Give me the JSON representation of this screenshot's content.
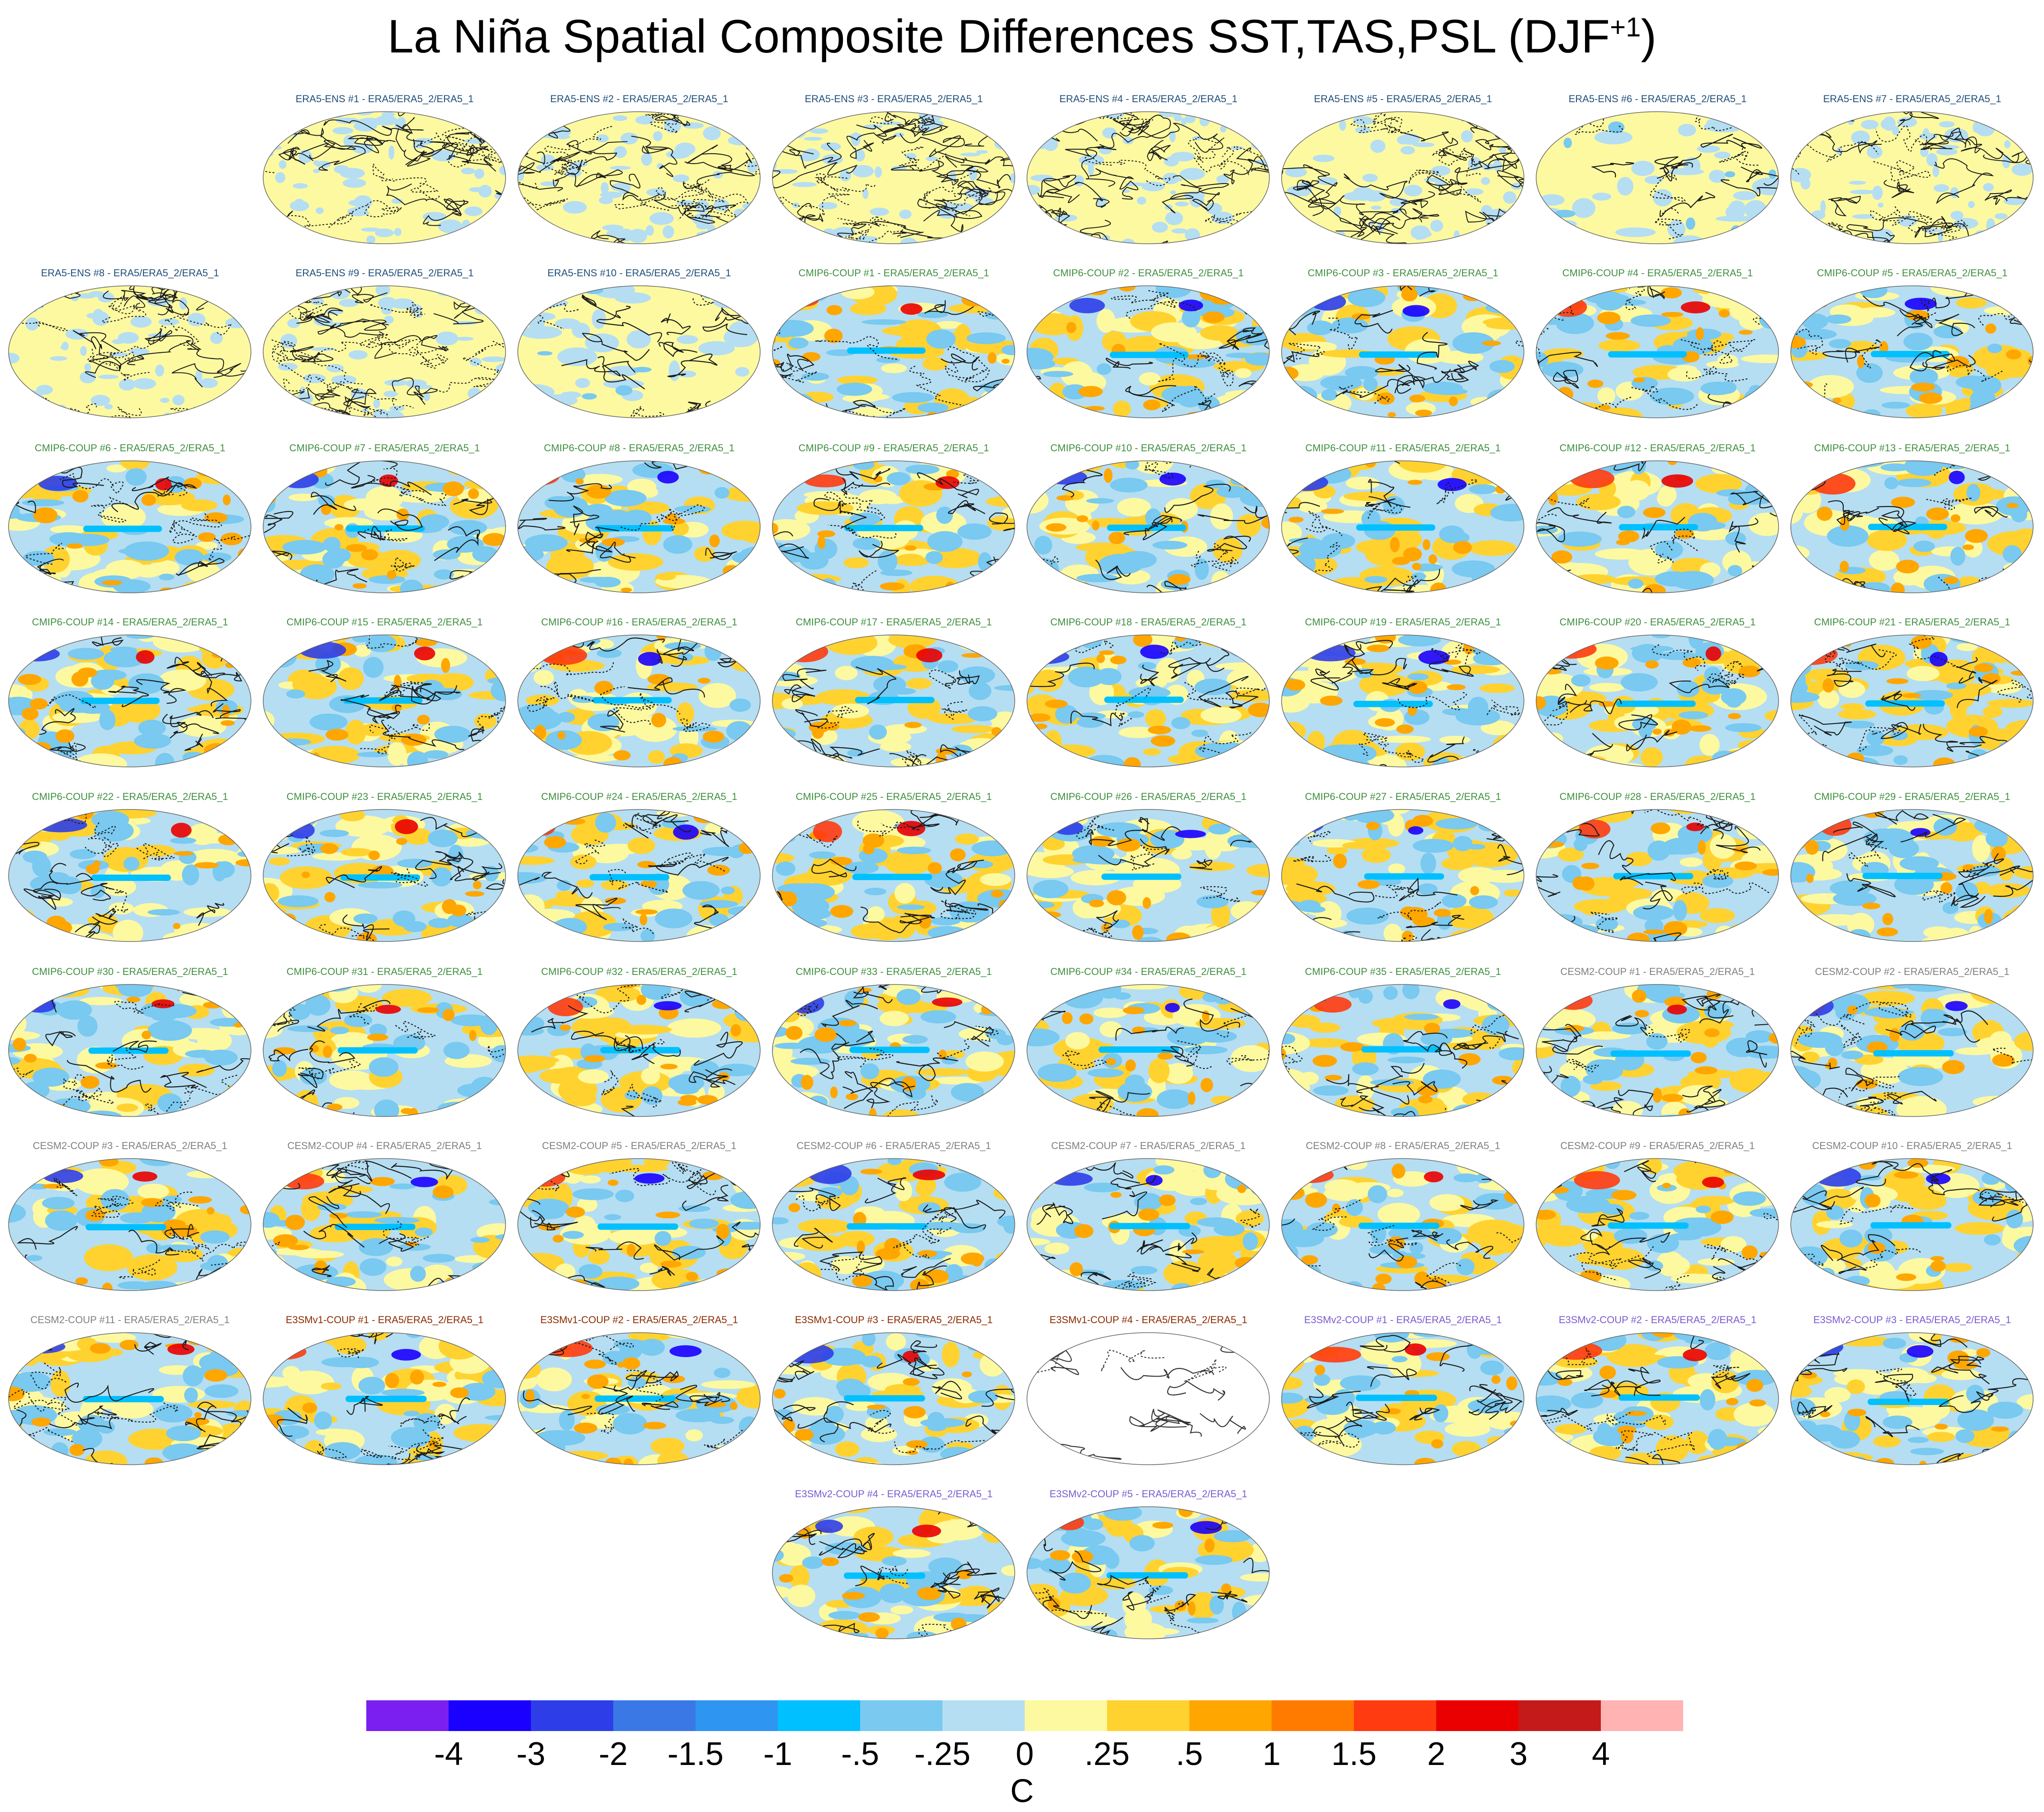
{
  "title": {
    "text": "La Niña Spatial Composite Differences SST,TAS,PSL (DJF",
    "sup": "+1",
    "close": ")"
  },
  "colors": {
    "ERA5-ENS": "#1f4e79",
    "CMIP6-COUP": "#3f8f3f",
    "CESM2-COUP": "#808080",
    "E3SMv1-COUP": "#8b2a00",
    "E3SMv2-COUP": "#7a5cd0"
  },
  "panels": [
    {
      "label": "ERA5-ENS    #1 - ERA5/ERA5_2/ERA5_1",
      "group": "ERA5-ENS",
      "style": "noise"
    },
    {
      "label": "ERA5-ENS    #2 - ERA5/ERA5_2/ERA5_1",
      "group": "ERA5-ENS",
      "style": "noise"
    },
    {
      "label": "ERA5-ENS    #3 - ERA5/ERA5_2/ERA5_1",
      "group": "ERA5-ENS",
      "style": "noise"
    },
    {
      "label": "ERA5-ENS    #4 - ERA5/ERA5_2/ERA5_1",
      "group": "ERA5-ENS",
      "style": "noise"
    },
    {
      "label": "ERA5-ENS    #5 - ERA5/ERA5_2/ERA5_1",
      "group": "ERA5-ENS",
      "style": "noise"
    },
    {
      "label": "ERA5-ENS    #6 - ERA5/ERA5_2/ERA5_1",
      "group": "ERA5-ENS",
      "style": "light"
    },
    {
      "label": "ERA5-ENS    #7 - ERA5/ERA5_2/ERA5_1",
      "group": "ERA5-ENS",
      "style": "noise"
    },
    {
      "label": "ERA5-ENS    #8 - ERA5/ERA5_2/ERA5_1",
      "group": "ERA5-ENS",
      "style": "noise"
    },
    {
      "label": "ERA5-ENS    #9 - ERA5/ERA5_2/ERA5_1",
      "group": "ERA5-ENS",
      "style": "noise"
    },
    {
      "label": "ERA5-ENS    #10 - ERA5/ERA5_2/ERA5_1",
      "group": "ERA5-ENS",
      "style": "light"
    },
    {
      "label": "CMIP6-COUP  #1 - ERA5/ERA5_2/ERA5_1",
      "group": "CMIP6-COUP",
      "style": "model"
    },
    {
      "label": "CMIP6-COUP  #2 - ERA5/ERA5_2/ERA5_1",
      "group": "CMIP6-COUP",
      "style": "model"
    },
    {
      "label": "CMIP6-COUP  #3 - ERA5/ERA5_2/ERA5_1",
      "group": "CMIP6-COUP",
      "style": "model"
    },
    {
      "label": "CMIP6-COUP  #4 - ERA5/ERA5_2/ERA5_1",
      "group": "CMIP6-COUP",
      "style": "model"
    },
    {
      "label": "CMIP6-COUP  #5 - ERA5/ERA5_2/ERA5_1",
      "group": "CMIP6-COUP",
      "style": "model"
    },
    {
      "label": "CMIP6-COUP  #6 - ERA5/ERA5_2/ERA5_1",
      "group": "CMIP6-COUP",
      "style": "model"
    },
    {
      "label": "CMIP6-COUP  #7 - ERA5/ERA5_2/ERA5_1",
      "group": "CMIP6-COUP",
      "style": "model"
    },
    {
      "label": "CMIP6-COUP  #8 - ERA5/ERA5_2/ERA5_1",
      "group": "CMIP6-COUP",
      "style": "model"
    },
    {
      "label": "CMIP6-COUP  #9 - ERA5/ERA5_2/ERA5_1",
      "group": "CMIP6-COUP",
      "style": "model"
    },
    {
      "label": "CMIP6-COUP  #10 - ERA5/ERA5_2/ERA5_1",
      "group": "CMIP6-COUP",
      "style": "model"
    },
    {
      "label": "CMIP6-COUP  #11 - ERA5/ERA5_2/ERA5_1",
      "group": "CMIP6-COUP",
      "style": "model"
    },
    {
      "label": "CMIP6-COUP  #12 - ERA5/ERA5_2/ERA5_1",
      "group": "CMIP6-COUP",
      "style": "model"
    },
    {
      "label": "CMIP6-COUP  #13 - ERA5/ERA5_2/ERA5_1",
      "group": "CMIP6-COUP",
      "style": "model"
    },
    {
      "label": "CMIP6-COUP  #14 - ERA5/ERA5_2/ERA5_1",
      "group": "CMIP6-COUP",
      "style": "model"
    },
    {
      "label": "CMIP6-COUP  #15 - ERA5/ERA5_2/ERA5_1",
      "group": "CMIP6-COUP",
      "style": "model"
    },
    {
      "label": "CMIP6-COUP  #16 - ERA5/ERA5_2/ERA5_1",
      "group": "CMIP6-COUP",
      "style": "model"
    },
    {
      "label": "CMIP6-COUP  #17 - ERA5/ERA5_2/ERA5_1",
      "group": "CMIP6-COUP",
      "style": "model"
    },
    {
      "label": "CMIP6-COUP  #18 - ERA5/ERA5_2/ERA5_1",
      "group": "CMIP6-COUP",
      "style": "model"
    },
    {
      "label": "CMIP6-COUP  #19 - ERA5/ERA5_2/ERA5_1",
      "group": "CMIP6-COUP",
      "style": "model"
    },
    {
      "label": "CMIP6-COUP  #20 - ERA5/ERA5_2/ERA5_1",
      "group": "CMIP6-COUP",
      "style": "model"
    },
    {
      "label": "CMIP6-COUP  #21 - ERA5/ERA5_2/ERA5_1",
      "group": "CMIP6-COUP",
      "style": "model"
    },
    {
      "label": "CMIP6-COUP  #22 - ERA5/ERA5_2/ERA5_1",
      "group": "CMIP6-COUP",
      "style": "model"
    },
    {
      "label": "CMIP6-COUP  #23 - ERA5/ERA5_2/ERA5_1",
      "group": "CMIP6-COUP",
      "style": "model"
    },
    {
      "label": "CMIP6-COUP  #24 - ERA5/ERA5_2/ERA5_1",
      "group": "CMIP6-COUP",
      "style": "model"
    },
    {
      "label": "CMIP6-COUP  #25 - ERA5/ERA5_2/ERA5_1",
      "group": "CMIP6-COUP",
      "style": "model"
    },
    {
      "label": "CMIP6-COUP  #26 - ERA5/ERA5_2/ERA5_1",
      "group": "CMIP6-COUP",
      "style": "model"
    },
    {
      "label": "CMIP6-COUP  #27 - ERA5/ERA5_2/ERA5_1",
      "group": "CMIP6-COUP",
      "style": "model"
    },
    {
      "label": "CMIP6-COUP  #28 - ERA5/ERA5_2/ERA5_1",
      "group": "CMIP6-COUP",
      "style": "model"
    },
    {
      "label": "CMIP6-COUP  #29 - ERA5/ERA5_2/ERA5_1",
      "group": "CMIP6-COUP",
      "style": "model"
    },
    {
      "label": "CMIP6-COUP  #30 - ERA5/ERA5_2/ERA5_1",
      "group": "CMIP6-COUP",
      "style": "model"
    },
    {
      "label": "CMIP6-COUP  #31 - ERA5/ERA5_2/ERA5_1",
      "group": "CMIP6-COUP",
      "style": "model"
    },
    {
      "label": "CMIP6-COUP  #32 - ERA5/ERA5_2/ERA5_1",
      "group": "CMIP6-COUP",
      "style": "model"
    },
    {
      "label": "CMIP6-COUP  #33 - ERA5/ERA5_2/ERA5_1",
      "group": "CMIP6-COUP",
      "style": "model"
    },
    {
      "label": "CMIP6-COUP  #34 - ERA5/ERA5_2/ERA5_1",
      "group": "CMIP6-COUP",
      "style": "model"
    },
    {
      "label": "CMIP6-COUP  #35 - ERA5/ERA5_2/ERA5_1",
      "group": "CMIP6-COUP",
      "style": "model"
    },
    {
      "label": "CESM2-COUP  #1 - ERA5/ERA5_2/ERA5_1",
      "group": "CESM2-COUP",
      "style": "model"
    },
    {
      "label": "CESM2-COUP  #2 - ERA5/ERA5_2/ERA5_1",
      "group": "CESM2-COUP",
      "style": "model"
    },
    {
      "label": "CESM2-COUP  #3 - ERA5/ERA5_2/ERA5_1",
      "group": "CESM2-COUP",
      "style": "model"
    },
    {
      "label": "CESM2-COUP  #4 - ERA5/ERA5_2/ERA5_1",
      "group": "CESM2-COUP",
      "style": "model"
    },
    {
      "label": "CESM2-COUP  #5 - ERA5/ERA5_2/ERA5_1",
      "group": "CESM2-COUP",
      "style": "model"
    },
    {
      "label": "CESM2-COUP  #6 - ERA5/ERA5_2/ERA5_1",
      "group": "CESM2-COUP",
      "style": "model"
    },
    {
      "label": "CESM2-COUP  #7 - ERA5/ERA5_2/ERA5_1",
      "group": "CESM2-COUP",
      "style": "model"
    },
    {
      "label": "CESM2-COUP  #8 - ERA5/ERA5_2/ERA5_1",
      "group": "CESM2-COUP",
      "style": "model"
    },
    {
      "label": "CESM2-COUP  #9 - ERA5/ERA5_2/ERA5_1",
      "group": "CESM2-COUP",
      "style": "model"
    },
    {
      "label": "CESM2-COUP  #10 - ERA5/ERA5_2/ERA5_1",
      "group": "CESM2-COUP",
      "style": "model"
    },
    {
      "label": "CESM2-COUP  #11 - ERA5/ERA5_2/ERA5_1",
      "group": "CESM2-COUP",
      "style": "model"
    },
    {
      "label": "E3SMv1-COUP  #1 - ERA5/ERA5_2/ERA5_1",
      "group": "E3SMv1-COUP",
      "style": "model"
    },
    {
      "label": "E3SMv1-COUP  #2 - ERA5/ERA5_2/ERA5_1",
      "group": "E3SMv1-COUP",
      "style": "model"
    },
    {
      "label": "E3SMv1-COUP  #3 - ERA5/ERA5_2/ERA5_1",
      "group": "E3SMv1-COUP",
      "style": "model"
    },
    {
      "label": "E3SMv1-COUP  #4 - ERA5/ERA5_2/ERA5_1",
      "group": "E3SMv1-COUP",
      "style": "blank"
    },
    {
      "label": "E3SMv2-COUP  #1 - ERA5/ERA5_2/ERA5_1",
      "group": "E3SMv2-COUP",
      "style": "model"
    },
    {
      "label": "E3SMv2-COUP  #2 - ERA5/ERA5_2/ERA5_1",
      "group": "E3SMv2-COUP",
      "style": "model"
    },
    {
      "label": "E3SMv2-COUP  #3 - ERA5/ERA5_2/ERA5_1",
      "group": "E3SMv2-COUP",
      "style": "model"
    },
    {
      "label": "E3SMv2-COUP  #4 - ERA5/ERA5_2/ERA5_1",
      "group": "E3SMv2-COUP",
      "style": "model"
    },
    {
      "label": "E3SMv2-COUP  #5 - ERA5/ERA5_2/ERA5_1",
      "group": "E3SMv2-COUP",
      "style": "model"
    }
  ],
  "colorbar": {
    "colors": [
      "#7b1ff0",
      "#1a00ff",
      "#2d3ee8",
      "#3a78e6",
      "#2e95f0",
      "#00c0ff",
      "#79c9f0",
      "#b5def2",
      "#fdf9a0",
      "#ffd230",
      "#ffa600",
      "#ff7b00",
      "#ff3b0f",
      "#ea0000",
      "#c41a1a",
      "#ffb3b3"
    ],
    "labels": [
      "-4",
      "-3",
      "-2",
      "-1.5",
      "-1",
      "-.5",
      "-.25",
      "0",
      ".25",
      ".5",
      "1",
      "1.5",
      "2",
      "3",
      "4"
    ],
    "units": "C"
  }
}
